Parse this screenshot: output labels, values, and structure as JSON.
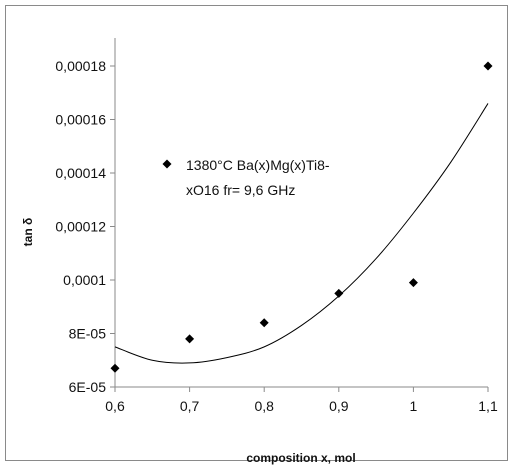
{
  "chart_data": {
    "type": "scatter",
    "title": "",
    "xlabel": "composition x, mol",
    "ylabel": "tan δ",
    "xlim": [
      0.6,
      1.1
    ],
    "ylim": [
      6e-05,
      0.00019
    ],
    "x_ticks": [
      0.6,
      0.7,
      0.8,
      0.9,
      1.0,
      1.1
    ],
    "x_tick_labels": [
      "0,6",
      "0,7",
      "0,8",
      "0,9",
      "1",
      "1,1"
    ],
    "y_ticks": [
      6e-05,
      8e-05,
      0.0001,
      0.00012,
      0.00014,
      0.00016,
      0.00018
    ],
    "y_tick_labels": [
      "6E-05",
      "8E-05",
      "0,0001",
      "0,00012",
      "0,00014",
      "0,00016",
      "0,00018"
    ],
    "grid": false,
    "legend_position": "upper-left inside plot",
    "series": [
      {
        "name": "1380°C Ba(x)Mg(x)Ti8-xO16  fr= 9,6 GHz",
        "legend_lines": [
          "1380°C Ba(x)Mg(x)Ti8-",
          "xO16  fr= 9,6 GHz"
        ],
        "marker": "diamond",
        "color": "#000000",
        "x": [
          0.6,
          0.7,
          0.8,
          0.9,
          1.0,
          1.1
        ],
        "y": [
          6.7e-05,
          7.8e-05,
          8.4e-05,
          9.5e-05,
          9.9e-05,
          0.00018
        ]
      }
    ],
    "trendline": {
      "type": "polynomial",
      "color": "#000000",
      "x": [
        0.6,
        0.65,
        0.7,
        0.75,
        0.8,
        0.85,
        0.9,
        0.95,
        1.0,
        1.05,
        1.1
      ],
      "y": [
        7.5e-05,
        7e-05,
        6.9e-05,
        7.1e-05,
        7.5e-05,
        8.3e-05,
        9.4e-05,
        0.000108,
        0.000125,
        0.000144,
        0.000166
      ]
    }
  }
}
